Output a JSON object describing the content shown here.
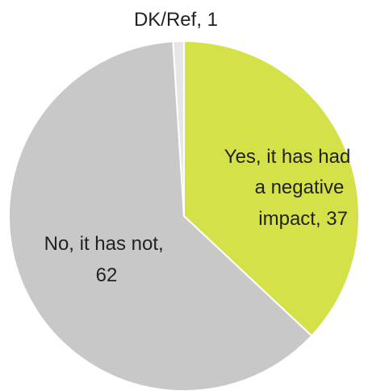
{
  "chart_data": {
    "type": "pie",
    "start_angle_deg": 0,
    "direction": "clockwise",
    "slices": [
      {
        "key": "yes",
        "label": "Yes, it has had a negative impact",
        "value": 37,
        "color": "#d4e149",
        "label_lines": [
          "Yes, it has had",
          "a negative",
          "impact, 37"
        ]
      },
      {
        "key": "no",
        "label": "No, it has not",
        "value": 62,
        "color": "#c8c8c8",
        "label_lines": [
          "No, it has not,",
          "62"
        ]
      },
      {
        "key": "dkref",
        "label": "DK/Ref",
        "value": 1,
        "color": "#e6e6e6",
        "label_lines": [
          "DK/Ref, 1"
        ]
      }
    ]
  }
}
